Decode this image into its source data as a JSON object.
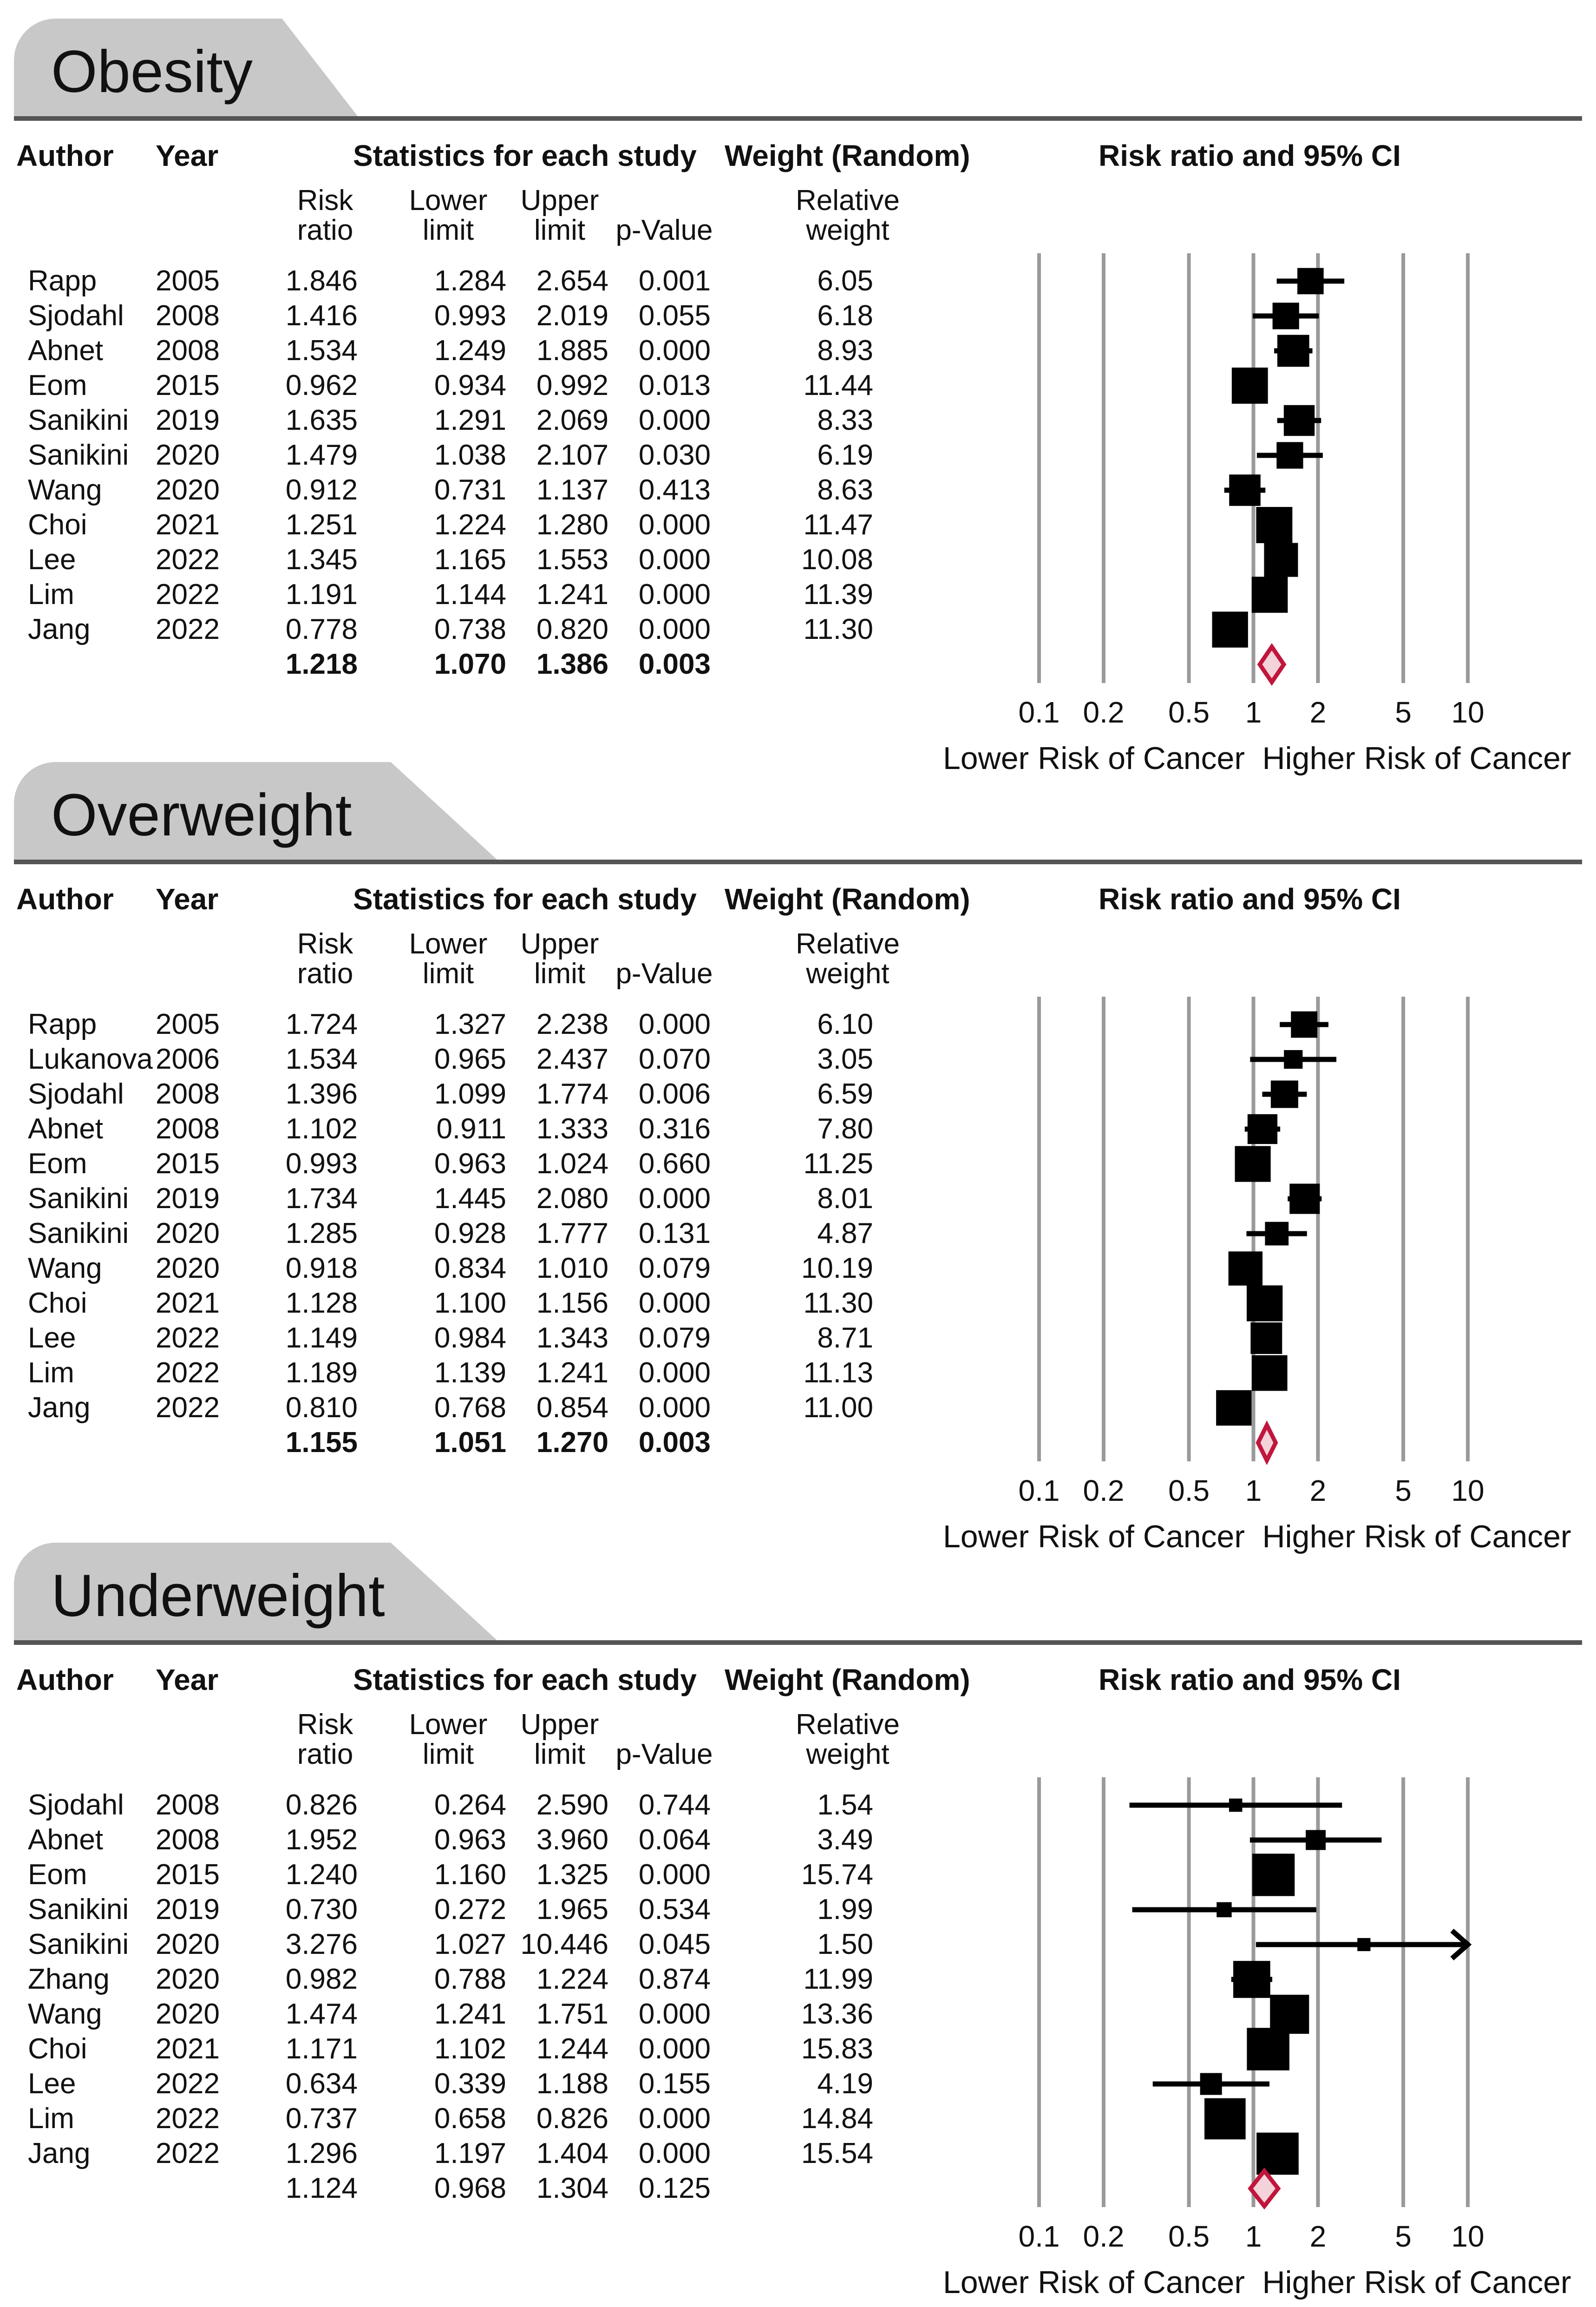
{
  "headers": {
    "author": "Author",
    "year": "Year",
    "stats": "Statistics for each study",
    "weight": "Weight (Random)",
    "ci": "Risk ratio and 95% CI",
    "rr1": "Risk",
    "rr2": "ratio",
    "ll1": "Lower",
    "ll2": "limit",
    "ul1": "Upper",
    "ul2": "limit",
    "pv": "p-Value",
    "rw1": "Relative",
    "rw2": "weight"
  },
  "axis": {
    "ticks": [
      "0.1",
      "0.2",
      "0.5",
      "1",
      "2",
      "5",
      "10"
    ],
    "tick_values": [
      0.1,
      0.2,
      0.5,
      1,
      2,
      5,
      10
    ],
    "left_caption": "Lower Risk of Cancer",
    "right_caption": "Higher Risk of Cancer"
  },
  "colors": {
    "tab": "#c8c8c8",
    "rule": "#555555",
    "grid": "#9a9a9a",
    "marker": "#000000",
    "diamond_stroke": "#c0163c",
    "diamond_fill": "#f4d2d9"
  },
  "chart_data": [
    {
      "type": "forest",
      "title": "Obesity",
      "xscale": "log",
      "xlim": [
        0.1,
        10
      ],
      "studies": [
        {
          "author": "Rapp",
          "year": "2005",
          "rr": "1.846",
          "lower": "1.284",
          "upper": "2.654",
          "p": "0.001",
          "weight": "6.05"
        },
        {
          "author": "Sjodahl",
          "year": "2008",
          "rr": "1.416",
          "lower": "0.993",
          "upper": "2.019",
          "p": "0.055",
          "weight": "6.18"
        },
        {
          "author": "Abnet",
          "year": "2008",
          "rr": "1.534",
          "lower": "1.249",
          "upper": "1.885",
          "p": "0.000",
          "weight": "8.93"
        },
        {
          "author": "Eom",
          "year": "2015",
          "rr": "0.962",
          "lower": "0.934",
          "upper": "0.992",
          "p": "0.013",
          "weight": "11.44"
        },
        {
          "author": "Sanikini",
          "year": "2019",
          "rr": "1.635",
          "lower": "1.291",
          "upper": "2.069",
          "p": "0.000",
          "weight": "8.33"
        },
        {
          "author": "Sanikini",
          "year": "2020",
          "rr": "1.479",
          "lower": "1.038",
          "upper": "2.107",
          "p": "0.030",
          "weight": "6.19"
        },
        {
          "author": "Wang",
          "year": "2020",
          "rr": "0.912",
          "lower": "0.731",
          "upper": "1.137",
          "p": "0.413",
          "weight": "8.63"
        },
        {
          "author": "Choi",
          "year": "2021",
          "rr": "1.251",
          "lower": "1.224",
          "upper": "1.280",
          "p": "0.000",
          "weight": "11.47"
        },
        {
          "author": "Lee",
          "year": "2022",
          "rr": "1.345",
          "lower": "1.165",
          "upper": "1.553",
          "p": "0.000",
          "weight": "10.08"
        },
        {
          "author": "Lim",
          "year": "2022",
          "rr": "1.191",
          "lower": "1.144",
          "upper": "1.241",
          "p": "0.000",
          "weight": "11.39"
        },
        {
          "author": "Jang",
          "year": "2022",
          "rr": "0.778",
          "lower": "0.738",
          "upper": "0.820",
          "p": "0.000",
          "weight": "11.30"
        }
      ],
      "pooled": {
        "rr": "1.218",
        "lower": "1.070",
        "upper": "1.386",
        "p": "0.003",
        "bold": true
      }
    },
    {
      "type": "forest",
      "title": "Overweight",
      "xscale": "log",
      "xlim": [
        0.1,
        10
      ],
      "studies": [
        {
          "author": "Rapp",
          "year": "2005",
          "rr": "1.724",
          "lower": "1.327",
          "upper": "2.238",
          "p": "0.000",
          "weight": "6.10"
        },
        {
          "author": "Lukanova",
          "year": "2006",
          "rr": "1.534",
          "lower": "0.965",
          "upper": "2.437",
          "p": "0.070",
          "weight": "3.05"
        },
        {
          "author": "Sjodahl",
          "year": "2008",
          "rr": "1.396",
          "lower": "1.099",
          "upper": "1.774",
          "p": "0.006",
          "weight": "6.59"
        },
        {
          "author": "Abnet",
          "year": "2008",
          "rr": "1.102",
          "lower": "0.911",
          "upper": "1.333",
          "p": "0.316",
          "weight": "7.80"
        },
        {
          "author": "Eom",
          "year": "2015",
          "rr": "0.993",
          "lower": "0.963",
          "upper": "1.024",
          "p": "0.660",
          "weight": "11.25"
        },
        {
          "author": "Sanikini",
          "year": "2019",
          "rr": "1.734",
          "lower": "1.445",
          "upper": "2.080",
          "p": "0.000",
          "weight": "8.01"
        },
        {
          "author": "Sanikini",
          "year": "2020",
          "rr": "1.285",
          "lower": "0.928",
          "upper": "1.777",
          "p": "0.131",
          "weight": "4.87"
        },
        {
          "author": "Wang",
          "year": "2020",
          "rr": "0.918",
          "lower": "0.834",
          "upper": "1.010",
          "p": "0.079",
          "weight": "10.19"
        },
        {
          "author": "Choi",
          "year": "2021",
          "rr": "1.128",
          "lower": "1.100",
          "upper": "1.156",
          "p": "0.000",
          "weight": "11.30"
        },
        {
          "author": "Lee",
          "year": "2022",
          "rr": "1.149",
          "lower": "0.984",
          "upper": "1.343",
          "p": "0.079",
          "weight": "8.71"
        },
        {
          "author": "Lim",
          "year": "2022",
          "rr": "1.189",
          "lower": "1.139",
          "upper": "1.241",
          "p": "0.000",
          "weight": "11.13"
        },
        {
          "author": "Jang",
          "year": "2022",
          "rr": "0.810",
          "lower": "0.768",
          "upper": "0.854",
          "p": "0.000",
          "weight": "11.00"
        }
      ],
      "pooled": {
        "rr": "1.155",
        "lower": "1.051",
        "upper": "1.270",
        "p": "0.003",
        "bold": true
      }
    },
    {
      "type": "forest",
      "title": "Underweight",
      "xscale": "log",
      "xlim": [
        0.1,
        10
      ],
      "studies": [
        {
          "author": "Sjodahl",
          "year": "2008",
          "rr": "0.826",
          "lower": "0.264",
          "upper": "2.590",
          "p": "0.744",
          "weight": "1.54"
        },
        {
          "author": "Abnet",
          "year": "2008",
          "rr": "1.952",
          "lower": "0.963",
          "upper": "3.960",
          "p": "0.064",
          "weight": "3.49"
        },
        {
          "author": "Eom",
          "year": "2015",
          "rr": "1.240",
          "lower": "1.160",
          "upper": "1.325",
          "p": "0.000",
          "weight": "15.74"
        },
        {
          "author": "Sanikini",
          "year": "2019",
          "rr": "0.730",
          "lower": "0.272",
          "upper": "1.965",
          "p": "0.534",
          "weight": "1.99"
        },
        {
          "author": "Sanikini",
          "year": "2020",
          "rr": "3.276",
          "lower": "1.027",
          "upper": "10.446",
          "p": "0.045",
          "weight": "1.50"
        },
        {
          "author": "Zhang",
          "year": "2020",
          "rr": "0.982",
          "lower": "0.788",
          "upper": "1.224",
          "p": "0.874",
          "weight": "11.99"
        },
        {
          "author": "Wang",
          "year": "2020",
          "rr": "1.474",
          "lower": "1.241",
          "upper": "1.751",
          "p": "0.000",
          "weight": "13.36"
        },
        {
          "author": "Choi",
          "year": "2021",
          "rr": "1.171",
          "lower": "1.102",
          "upper": "1.244",
          "p": "0.000",
          "weight": "15.83"
        },
        {
          "author": "Lee",
          "year": "2022",
          "rr": "0.634",
          "lower": "0.339",
          "upper": "1.188",
          "p": "0.155",
          "weight": "4.19"
        },
        {
          "author": "Lim",
          "year": "2022",
          "rr": "0.737",
          "lower": "0.658",
          "upper": "0.826",
          "p": "0.000",
          "weight": "14.84"
        },
        {
          "author": "Jang",
          "year": "2022",
          "rr": "1.296",
          "lower": "1.197",
          "upper": "1.404",
          "p": "0.000",
          "weight": "15.54"
        }
      ],
      "pooled": {
        "rr": "1.124",
        "lower": "0.968",
        "upper": "1.304",
        "p": "0.125",
        "bold": false
      }
    }
  ]
}
